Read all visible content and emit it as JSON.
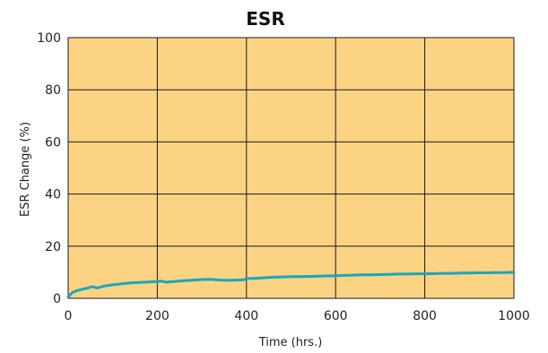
{
  "chart_data": {
    "type": "line",
    "title": "ESR",
    "xlabel": "Time (hrs.)",
    "ylabel": "ESR Change (%)",
    "xlim": [
      0,
      1000
    ],
    "ylim": [
      0,
      100
    ],
    "x_ticks": [
      0,
      200,
      400,
      600,
      800,
      1000
    ],
    "y_ticks": [
      0,
      20,
      40,
      60,
      80,
      100
    ],
    "x_tick_labels": [
      "0",
      "200",
      "400",
      "600",
      "800",
      "1000"
    ],
    "y_tick_labels": [
      "0",
      "20",
      "40",
      "60",
      "80",
      "100"
    ],
    "grid": true,
    "colors": {
      "plot_background": "#fcd383",
      "grid": "#1a1a1a",
      "series": "#1aa6bf"
    },
    "series": [
      {
        "x": [
          0,
          5,
          10,
          20,
          30,
          40,
          55,
          65,
          80,
          100,
          120,
          140,
          160,
          180,
          200,
          210,
          220,
          240,
          260,
          280,
          300,
          320,
          340,
          360,
          380,
          395,
          400,
          410,
          420,
          440,
          460,
          480,
          500,
          520,
          540,
          560,
          580,
          600,
          620,
          640,
          660,
          680,
          700,
          720,
          740,
          760,
          780,
          800,
          820,
          840,
          860,
          880,
          900,
          920,
          940,
          960,
          980,
          1000
        ],
        "y": [
          0.5,
          1.5,
          2.3,
          3.0,
          3.4,
          3.8,
          4.5,
          4.0,
          4.7,
          5.2,
          5.6,
          5.9,
          6.1,
          6.3,
          6.5,
          6.6,
          6.2,
          6.5,
          6.8,
          7.0,
          7.2,
          7.3,
          7.0,
          6.9,
          7.0,
          7.1,
          7.7,
          7.6,
          7.7,
          7.9,
          8.1,
          8.2,
          8.3,
          8.3,
          8.4,
          8.5,
          8.6,
          8.7,
          8.8,
          8.9,
          9.0,
          9.0,
          9.1,
          9.2,
          9.3,
          9.3,
          9.4,
          9.4,
          9.5,
          9.6,
          9.6,
          9.7,
          9.7,
          9.8,
          9.8,
          9.9,
          9.9,
          10.0
        ]
      }
    ]
  }
}
